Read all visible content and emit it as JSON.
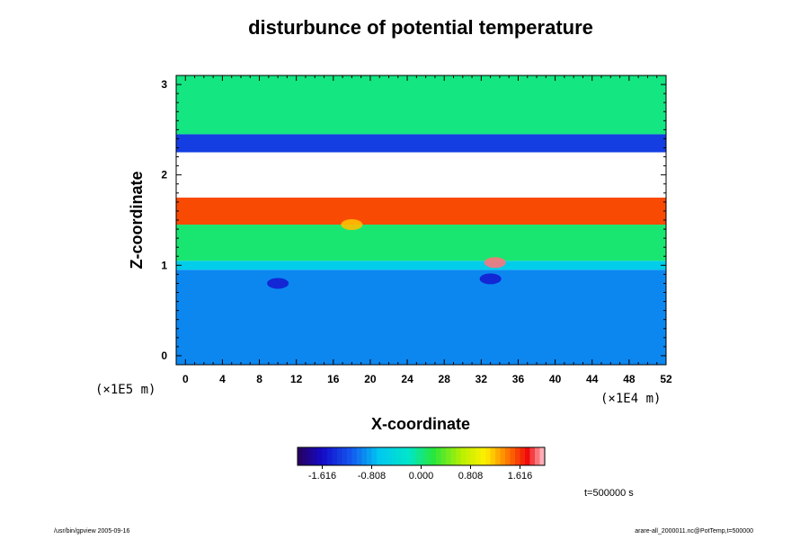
{
  "chart_data": {
    "type": "heatmap",
    "title": "disturbunce of potential temperature",
    "xlabel": "X-coordinate",
    "ylabel": "Z-coordinate",
    "xlim": [
      -1,
      52
    ],
    "ylim": [
      -0.1,
      3.1
    ],
    "x_ticks": [
      0,
      4,
      8,
      12,
      16,
      20,
      24,
      28,
      32,
      36,
      40,
      44,
      48,
      52
    ],
    "x_tick_labels": [
      "0",
      "4",
      "8",
      "12",
      "16",
      "20",
      "24",
      "28",
      "32",
      "36",
      "40",
      "44",
      "48",
      "52"
    ],
    "y_ticks": [
      0,
      1,
      2,
      3
    ],
    "y_tick_labels": [
      "0",
      "1",
      "2",
      "3"
    ],
    "x_unit": "(×1E4 m)",
    "y_unit": "(×1E5 m)",
    "colorbar": {
      "ticks": [
        -1.616,
        -0.808,
        0.0,
        0.808,
        1.616
      ],
      "tick_labels": [
        "-1.616",
        "-0.808",
        "0.000",
        "0.808",
        "1.616"
      ],
      "range": [
        -2.02,
        2.02
      ],
      "colormap": "rainbow"
    },
    "field_bands": [
      {
        "z_range": [
          -0.1,
          0.95
        ],
        "value": -0.95
      },
      {
        "z_range": [
          0.95,
          1.05
        ],
        "value": -0.6
      },
      {
        "z_range": [
          1.05,
          1.45
        ],
        "value": 0.05
      },
      {
        "z_range": [
          1.45,
          1.75
        ],
        "value": 1.55
      },
      {
        "z_range": [
          1.75,
          2.25
        ],
        "value": null
      },
      {
        "z_range": [
          2.25,
          2.45
        ],
        "value": -1.3
      },
      {
        "z_range": [
          2.45,
          3.1
        ],
        "value": 0.0
      }
    ],
    "features": [
      {
        "x": 33.5,
        "z": 1.03,
        "value": 1.9
      },
      {
        "x": 18,
        "z": 1.45,
        "value": 1.2
      },
      {
        "x": 10,
        "z": 0.8,
        "value": -1.5
      },
      {
        "x": 33,
        "z": 0.85,
        "value": -1.5
      }
    ],
    "time": "t=500000 s"
  },
  "footer": {
    "left": "/usr/bin/gpview 2005-09-16",
    "right": "arare-all_2000011.nc@PotTemp,t=500000"
  }
}
